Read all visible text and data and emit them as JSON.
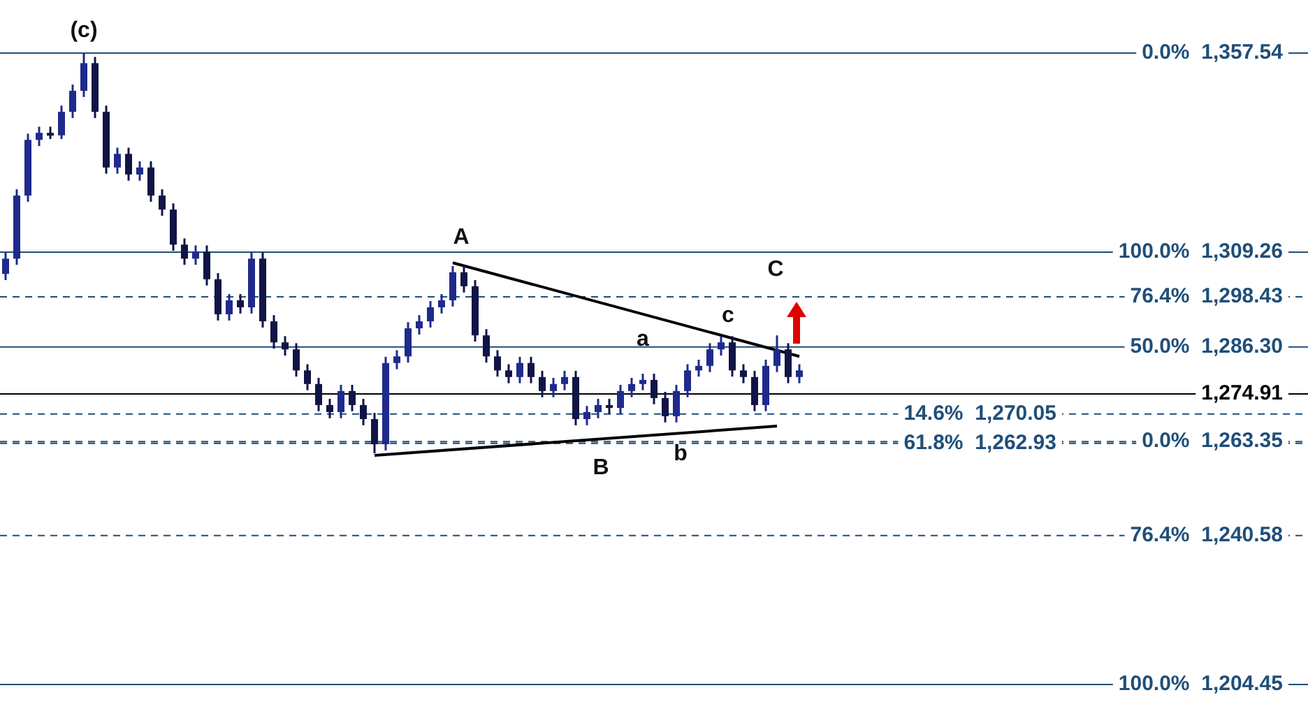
{
  "chart_data": {
    "type": "candlestick",
    "tick_labels": false,
    "ylim": [
      1204.45,
      1357.54
    ],
    "colors": [
      "#1f2a8c",
      "#1f2a8c",
      "#1f2a8c",
      "#1f2a8c",
      "#101546",
      "#1f2a8c",
      "#1f2a8c",
      "#1f2a8c",
      "#101546",
      "#101546",
      "#1f2a8c",
      "#101546",
      "#1f2a8c",
      "#101546",
      "#101546",
      "#101546",
      "#101546",
      "#1f2a8c",
      "#101546",
      "#101546",
      "#1f2a8c",
      "#101546",
      "#1f2a8c",
      "#101546",
      "#101546",
      "#101546",
      "#101546",
      "#101546",
      "#101546",
      "#101546",
      "#1f2a8c",
      "#101546",
      "#101546",
      "#101546",
      "#1f2a8c",
      "#1f2a8c",
      "#1f2a8c",
      "#1f2a8c",
      "#1f2a8c",
      "#1f2a8c",
      "#1f2a8c",
      "#101546",
      "#101546",
      "#101546",
      "#101546",
      "#101546",
      "#1f2a8c",
      "#101546",
      "#101546",
      "#1f2a8c",
      "#1f2a8c",
      "#101546",
      "#1f2a8c",
      "#1f2a8c",
      "#101546",
      "#1f2a8c",
      "#1f2a8c",
      "#1f2a8c",
      "#101546",
      "#101546",
      "#1f2a8c",
      "#1f2a8c",
      "#1f2a8c",
      "#1f2a8c",
      "#1f2a8c",
      "#101546",
      "#101546",
      "#101546",
      "#1f2a8c",
      "#1f2a8c",
      "#101546",
      "#1f2a8c"
    ],
    "categories": [
      null,
      null,
      null,
      null,
      null,
      null,
      null,
      null,
      null,
      null,
      null,
      null,
      null,
      null,
      null,
      null,
      null,
      null,
      null,
      null,
      null,
      null,
      null,
      null,
      null,
      null,
      null,
      null,
      null,
      null,
      null,
      null,
      null,
      null,
      null,
      null,
      null,
      null,
      null,
      null,
      null,
      null,
      null,
      null,
      null,
      null,
      null,
      null,
      null,
      null,
      null,
      null,
      null,
      null,
      null,
      null,
      null,
      null,
      null,
      null,
      null,
      null,
      null,
      null,
      null,
      null,
      null,
      null,
      null,
      null,
      null,
      null
    ],
    "ohlc": [
      [
        1304.0,
        1309.2,
        1302.5,
        1307.7
      ],
      [
        1307.7,
        1324.5,
        1306.2,
        1323.0
      ],
      [
        1323.0,
        1338.0,
        1321.5,
        1336.5
      ],
      [
        1336.5,
        1339.7,
        1335.0,
        1338.2
      ],
      [
        1338.2,
        1339.7,
        1336.7,
        1337.6
      ],
      [
        1337.6,
        1344.8,
        1336.7,
        1343.3
      ],
      [
        1343.3,
        1349.9,
        1341.8,
        1348.4
      ],
      [
        1348.4,
        1357.5,
        1346.9,
        1355.1
      ],
      [
        1355.1,
        1356.6,
        1341.8,
        1343.3
      ],
      [
        1343.3,
        1344.8,
        1328.3,
        1329.8
      ],
      [
        1329.8,
        1334.6,
        1328.3,
        1333.1
      ],
      [
        1333.1,
        1334.6,
        1326.6,
        1328.1
      ],
      [
        1328.1,
        1331.3,
        1326.6,
        1329.8
      ],
      [
        1329.8,
        1331.3,
        1321.5,
        1323.0
      ],
      [
        1323.0,
        1324.5,
        1318.1,
        1319.6
      ],
      [
        1319.6,
        1321.1,
        1309.6,
        1311.1
      ],
      [
        1311.1,
        1312.6,
        1306.2,
        1307.7
      ],
      [
        1307.7,
        1310.9,
        1306.2,
        1309.4
      ],
      [
        1309.4,
        1310.9,
        1301.2,
        1302.7
      ],
      [
        1302.7,
        1304.2,
        1292.7,
        1294.2
      ],
      [
        1294.2,
        1299.1,
        1292.7,
        1297.6
      ],
      [
        1297.6,
        1299.1,
        1294.4,
        1295.9
      ],
      [
        1295.9,
        1309.2,
        1294.4,
        1307.7
      ],
      [
        1307.7,
        1309.2,
        1291.0,
        1292.5
      ],
      [
        1292.5,
        1294.0,
        1285.9,
        1287.4
      ],
      [
        1287.4,
        1288.9,
        1284.2,
        1285.7
      ],
      [
        1285.7,
        1287.2,
        1279.1,
        1280.6
      ],
      [
        1280.6,
        1282.1,
        1275.8,
        1277.3
      ],
      [
        1277.3,
        1278.8,
        1270.7,
        1272.2
      ],
      [
        1272.2,
        1273.7,
        1269.0,
        1270.5
      ],
      [
        1270.5,
        1277.1,
        1269.0,
        1275.6
      ],
      [
        1275.6,
        1277.1,
        1270.7,
        1272.2
      ],
      [
        1272.2,
        1273.7,
        1267.3,
        1268.8
      ],
      [
        1268.8,
        1270.3,
        1260.5,
        1262.7
      ],
      [
        1262.7,
        1283.9,
        1261.2,
        1282.4
      ],
      [
        1282.4,
        1285.5,
        1280.9,
        1284.0
      ],
      [
        1284.0,
        1292.3,
        1282.5,
        1290.8
      ],
      [
        1290.8,
        1294.0,
        1289.3,
        1292.5
      ],
      [
        1292.5,
        1297.4,
        1291.0,
        1295.9
      ],
      [
        1295.9,
        1299.1,
        1294.4,
        1297.6
      ],
      [
        1297.6,
        1305.9,
        1296.1,
        1304.4
      ],
      [
        1304.4,
        1305.9,
        1299.5,
        1301.0
      ],
      [
        1301.0,
        1302.5,
        1287.6,
        1289.1
      ],
      [
        1289.1,
        1290.6,
        1282.5,
        1284.0
      ],
      [
        1284.0,
        1285.5,
        1279.1,
        1280.6
      ],
      [
        1280.6,
        1282.1,
        1277.5,
        1279.0
      ],
      [
        1279.0,
        1283.9,
        1277.5,
        1282.4
      ],
      [
        1282.4,
        1283.9,
        1277.5,
        1279.0
      ],
      [
        1279.0,
        1280.5,
        1274.1,
        1275.6
      ],
      [
        1275.6,
        1278.8,
        1274.1,
        1277.3
      ],
      [
        1277.3,
        1280.5,
        1275.8,
        1279.0
      ],
      [
        1279.0,
        1280.5,
        1267.3,
        1268.8
      ],
      [
        1268.8,
        1272.0,
        1267.3,
        1270.5
      ],
      [
        1270.5,
        1273.7,
        1269.0,
        1272.2
      ],
      [
        1272.2,
        1273.7,
        1270.0,
        1271.5
      ],
      [
        1271.5,
        1277.1,
        1270.0,
        1275.6
      ],
      [
        1275.6,
        1278.8,
        1274.1,
        1277.3
      ],
      [
        1277.3,
        1279.8,
        1275.8,
        1278.3
      ],
      [
        1278.3,
        1279.8,
        1272.4,
        1273.9
      ],
      [
        1273.9,
        1275.4,
        1268.0,
        1269.5
      ],
      [
        1269.5,
        1277.1,
        1268.0,
        1275.6
      ],
      [
        1275.6,
        1282.1,
        1274.1,
        1280.6
      ],
      [
        1280.6,
        1283.2,
        1279.1,
        1281.7
      ],
      [
        1281.7,
        1287.2,
        1280.2,
        1285.7
      ],
      [
        1285.7,
        1288.9,
        1284.2,
        1287.4
      ],
      [
        1287.4,
        1288.9,
        1279.1,
        1280.6
      ],
      [
        1280.6,
        1282.1,
        1277.5,
        1279.0
      ],
      [
        1279.0,
        1280.5,
        1270.7,
        1272.2
      ],
      [
        1272.2,
        1283.2,
        1270.7,
        1281.7
      ],
      [
        1281.7,
        1289.1,
        1280.2,
        1285.7
      ],
      [
        1285.7,
        1287.2,
        1277.5,
        1279.0
      ],
      [
        1279.0,
        1282.1,
        1277.5,
        1280.6
      ]
    ],
    "series": [
      {
        "type": "line",
        "color": "#000000",
        "values": [
          null,
          null,
          null,
          null,
          null,
          null,
          null,
          null,
          null,
          null,
          null,
          null,
          null,
          null,
          null,
          null,
          null,
          null,
          null,
          null,
          null,
          null,
          null,
          null,
          null,
          null,
          null,
          null,
          null,
          null,
          null,
          null,
          null,
          null,
          null,
          null,
          null,
          null,
          null,
          null,
          1306.7,
          null,
          null,
          null,
          null,
          null,
          null,
          null,
          null,
          null,
          null,
          null,
          null,
          null,
          null,
          null,
          null,
          null,
          null,
          null,
          null,
          null,
          null,
          null,
          null,
          null,
          null,
          null,
          null,
          null,
          null,
          1284.0
        ]
      },
      {
        "type": "line",
        "color": "#000000",
        "values": [
          null,
          null,
          null,
          null,
          null,
          null,
          null,
          null,
          null,
          null,
          null,
          null,
          null,
          null,
          null,
          null,
          null,
          null,
          null,
          null,
          null,
          null,
          null,
          null,
          null,
          null,
          null,
          null,
          null,
          null,
          null,
          null,
          null,
          1260.0,
          null,
          null,
          null,
          null,
          null,
          null,
          null,
          null,
          null,
          null,
          null,
          null,
          null,
          null,
          null,
          null,
          null,
          null,
          null,
          null,
          null,
          null,
          null,
          null,
          null,
          null,
          null,
          null,
          null,
          null,
          null,
          null,
          null,
          null,
          null,
          1267.1,
          null,
          null
        ]
      }
    ],
    "ref_lines": [
      {
        "axis": "y",
        "value": 1357.54,
        "label": "0.0%  1,357.54",
        "color": "#1f4e79",
        "line_style": "solid"
      },
      {
        "axis": "y",
        "value": 1309.26,
        "label": "100.0%  1,309.26",
        "color": "#1f4e79",
        "line_style": "solid"
      },
      {
        "axis": "y",
        "value": 1298.43,
        "label": "76.4%  1,298.43",
        "color": "#1f4e79",
        "line_style": "dashed"
      },
      {
        "axis": "y",
        "value": 1286.3,
        "label": "50.0%  1,286.30",
        "color": "#1f4e79",
        "line_style": "solid"
      },
      {
        "axis": "y",
        "value": 1274.91,
        "label": "1,274.91",
        "color": "#000000",
        "line_style": "solid"
      },
      {
        "axis": "y",
        "value": 1270.05,
        "label": "14.6%  1,270.05",
        "color": "#1f4e79",
        "line_style": "dashed"
      },
      {
        "axis": "y",
        "value": 1263.35,
        "label": "0.0%  1,263.35",
        "color": "#1f4e79",
        "line_style": "dashed"
      },
      {
        "axis": "y",
        "value": 1262.93,
        "label": "61.8%  1,262.93",
        "color": "#1f4e79",
        "line_style": "dashed"
      },
      {
        "axis": "y",
        "value": 1240.58,
        "label": "76.4%  1,240.58",
        "color": "#1f4e79",
        "line_style": "dashed"
      },
      {
        "axis": "y",
        "value": 1204.45,
        "label": "100.0%  1,204.45",
        "color": "#1f4e79",
        "line_style": "solid"
      }
    ],
    "annotations": [
      "(c)",
      "A",
      "B",
      "C",
      "a",
      "b",
      "c"
    ]
  }
}
